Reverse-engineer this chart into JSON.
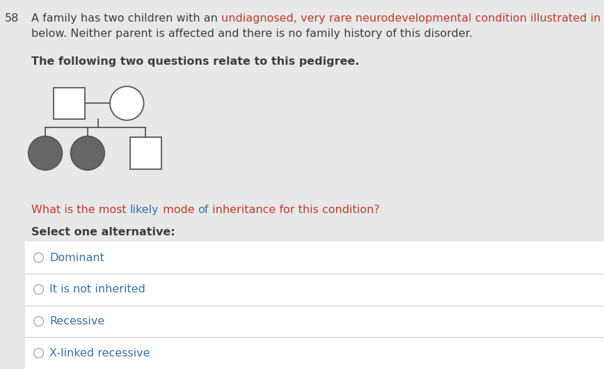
{
  "bg_color": "#e8e8e8",
  "white_box_color": "#ffffff",
  "question_number": "58",
  "bold_heading": "The following two questions relate to this pedigree.",
  "question_text_parts": [
    {
      "text": "What is the most likely mode ",
      "color": "#c0392b"
    },
    {
      "text": "of ",
      "color": "#3a6ea5"
    },
    {
      "text": "inheritance for this condition?",
      "color": "#c0392b"
    }
  ],
  "select_label": "Select one alternative:",
  "options": [
    "Dominant",
    "It is not inherited",
    "Recessive",
    "X-linked recessive"
  ],
  "text_color_normal": "#3d3d3d",
  "text_color_orange": "#c0392b",
  "text_color_blue": "#3a6ea5",
  "pedigree_filled_color": "#666666",
  "pedigree_unfilled_color": "#ffffff",
  "pedigree_line_color": "#555555",
  "option_divider_color": "#cccccc",
  "radio_color": "#aaaaaa",
  "font_size_main": 11.5,
  "font_size_heading": 11.5,
  "font_size_question": 11.5,
  "font_size_select": 11.5,
  "font_size_option": 11.5
}
